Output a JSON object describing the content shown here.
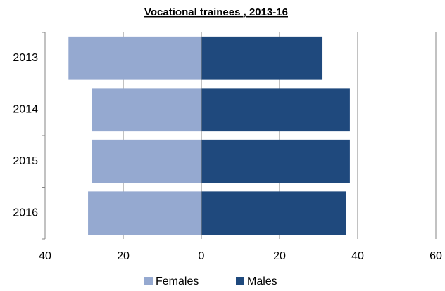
{
  "chart_data": {
    "type": "bar",
    "orientation": "horizontal",
    "title": "Vocational trainees , 2013-16",
    "categories": [
      "2013",
      "2014",
      "2015",
      "2016"
    ],
    "series": [
      {
        "name": "Females",
        "color": "#95a9d0",
        "values": [
          -34,
          -28,
          -28,
          -29
        ]
      },
      {
        "name": "Males",
        "color": "#1f497d",
        "values": [
          31,
          38,
          38,
          37
        ]
      }
    ],
    "xlim": [
      -40,
      60
    ],
    "xticks": [
      {
        "value": -40,
        "label": "40"
      },
      {
        "value": -20,
        "label": "20"
      },
      0,
      20,
      40,
      60
    ],
    "grid": true,
    "legend": "bottom"
  }
}
